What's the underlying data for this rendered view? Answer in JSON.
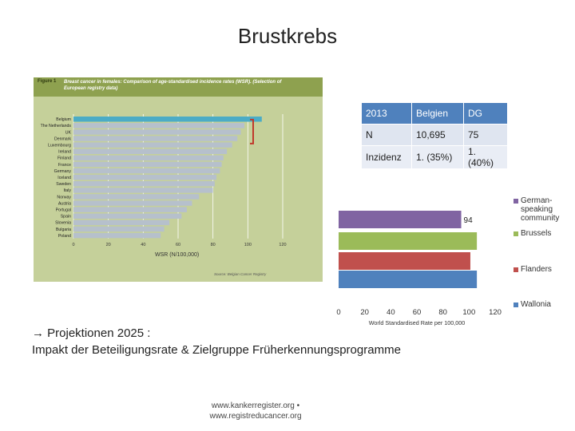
{
  "slide": {
    "title": "Brustkrebs",
    "projection_line1": "→ Projektionen 2025 :",
    "projection_line2": "Impakt der Beteiligungsrate & Zielgruppe Früherkennungsprogramme",
    "footer_line1": "www.kankerregister.org •",
    "footer_line2": "www.registreducancer.org"
  },
  "figure": {
    "label": "Figure 1",
    "caption": "Breast cancer in females: Comparison of age-standardised incidence rates (WSR). (Selection of European registry data)",
    "xlabel": "WSR (N/100,000)",
    "source": "Source: Belgian Cancer Registry",
    "colors": {
      "panel": "#c5d09a",
      "header": "#8ea14f",
      "bar": "#b6c0cc",
      "belgium_bar": "#4bacc6",
      "bracket": "#c0392b",
      "grid": "#ffffff"
    }
  },
  "stats_table": {
    "rows": [
      [
        "2013",
        "Belgien",
        "DG"
      ],
      [
        "N",
        "10,695",
        "75"
      ],
      [
        "Inzidenz",
        "1. (35%)",
        "1. (40%)"
      ]
    ]
  },
  "chart_data": [
    {
      "type": "bar",
      "orientation": "horizontal",
      "categories": [
        "Belgium",
        "The Netherlands",
        "UK",
        "Denmark",
        "Luxembourg",
        "Ireland",
        "Finland",
        "France",
        "Germany",
        "Iceland",
        "Sweden",
        "Italy",
        "Norway",
        "Austria",
        "Portugal",
        "Spain",
        "Slovenia",
        "Bulgaria",
        "Poland"
      ],
      "values": [
        108,
        98,
        96,
        94,
        91,
        88,
        86,
        85,
        84,
        82,
        81,
        80,
        72,
        68,
        65,
        62,
        55,
        52,
        50
      ],
      "xlabel": "WSR (N/100,000)",
      "xticks": [
        0,
        20,
        40,
        60,
        80,
        100,
        120
      ],
      "xlim": [
        0,
        120
      ],
      "highlight": "Belgium"
    },
    {
      "type": "bar",
      "orientation": "horizontal",
      "xlabel": "World Standardised Rate per 100,000",
      "xticks": [
        0,
        20,
        40,
        60,
        80,
        100,
        120
      ],
      "xlim": [
        0,
        120
      ],
      "series": [
        {
          "name": "German-speaking community",
          "value": 94,
          "color": "#8064a2",
          "label": "94"
        },
        {
          "name": "Brussels",
          "value": 106,
          "color": "#9bbb59"
        },
        {
          "name": "Flanders",
          "value": 101,
          "color": "#c0504d"
        },
        {
          "name": "Wallonia",
          "value": 106,
          "color": "#4f81bd"
        }
      ],
      "legend_placement": "right",
      "legend": [
        {
          "text": "German-speaking community",
          "color": "#8064a2"
        },
        {
          "text": "Brussels",
          "color": "#9bbb59"
        },
        {
          "text": "Flanders",
          "color": "#c0504d"
        },
        {
          "text": "Wallonia",
          "color": "#4f81bd"
        }
      ]
    }
  ]
}
